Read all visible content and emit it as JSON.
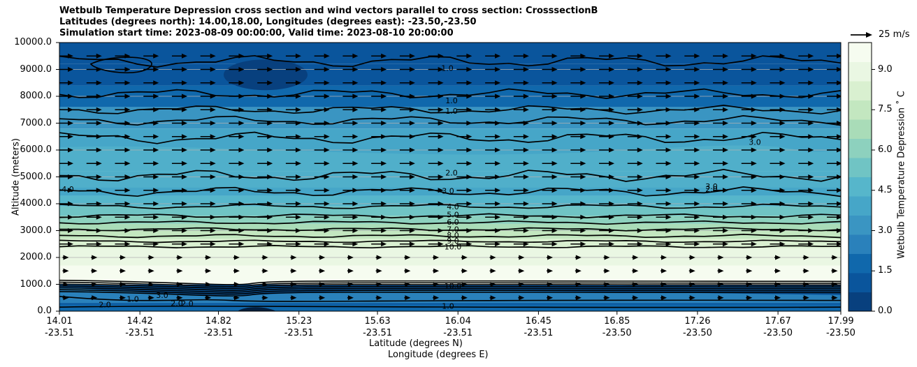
{
  "chart_data": {
    "type": "heatmap",
    "title_lines": [
      "Wetbulb Temperature Depression cross section and wind vectors parallel to cross section: CrosssectionB",
      "Latitudes (degrees north): 14.00,18.00, Longitudes (degrees east): -23.50,-23.50",
      "Simulation start time: 2023-08-09 00:00:00, Valid time: 2023-08-10 20:00:00"
    ],
    "ylabel": "Altitude (meters)",
    "xlabel_1": "Latitude (degrees N)",
    "xlabel_2": "Longitude (degrees E)",
    "ylim": [
      0,
      10000
    ],
    "yticks": [
      "0.0",
      "1000.0",
      "2000.0",
      "3000.0",
      "4000.0",
      "5000.0",
      "6000.0",
      "7000.0",
      "8000.0",
      "9000.0",
      "10000.0"
    ],
    "xticks": [
      {
        "lat": "14.01",
        "lon": "-23.51"
      },
      {
        "lat": "14.42",
        "lon": "-23.51"
      },
      {
        "lat": "14.82",
        "lon": "-23.51"
      },
      {
        "lat": "15.23",
        "lon": "-23.51"
      },
      {
        "lat": "15.63",
        "lon": "-23.51"
      },
      {
        "lat": "16.04",
        "lon": "-23.51"
      },
      {
        "lat": "16.45",
        "lon": "-23.51"
      },
      {
        "lat": "16.85",
        "lon": "-23.50"
      },
      {
        "lat": "17.26",
        "lon": "-23.50"
      },
      {
        "lat": "17.67",
        "lon": "-23.50"
      },
      {
        "lat": "17.99",
        "lon": "-23.50"
      }
    ],
    "colorbar": {
      "label": "Wetbulb Temperature Depression $^\\circ$C",
      "label_display": "Wetbulb Temperature Depression ˚ C",
      "range": [
        0,
        10
      ],
      "ticks": [
        "0.0",
        "1.5",
        "3.0",
        "4.5",
        "6.0",
        "7.5",
        "9.0"
      ],
      "colors": [
        "#08407e",
        "#0a559c",
        "#1068ac",
        "#2a81bb",
        "#3a95c2",
        "#46a6c8",
        "#56b6cb",
        "#70c4c4",
        "#8dd1be",
        "#a9dcb8",
        "#c3e7c0",
        "#d9f0d0",
        "#eaf7e3",
        "#f6fcf0"
      ]
    },
    "quiver_key": {
      "label": "25 m/s"
    },
    "wind_direction": "parallel, pointing to increasing latitude",
    "contour_labels": [
      "1.0",
      "1.0",
      "1.0",
      "2.0",
      "3.0",
      "3.0",
      "3.0",
      "2.0",
      "4.0",
      "4.0",
      "5.0",
      "6.0",
      "7.0",
      "8.0",
      "9.0",
      "10.0",
      "10.0",
      "2.0",
      "2.0",
      "1.0",
      "3.0",
      "2.0",
      "1.0"
    ],
    "grid": "horizontal"
  }
}
